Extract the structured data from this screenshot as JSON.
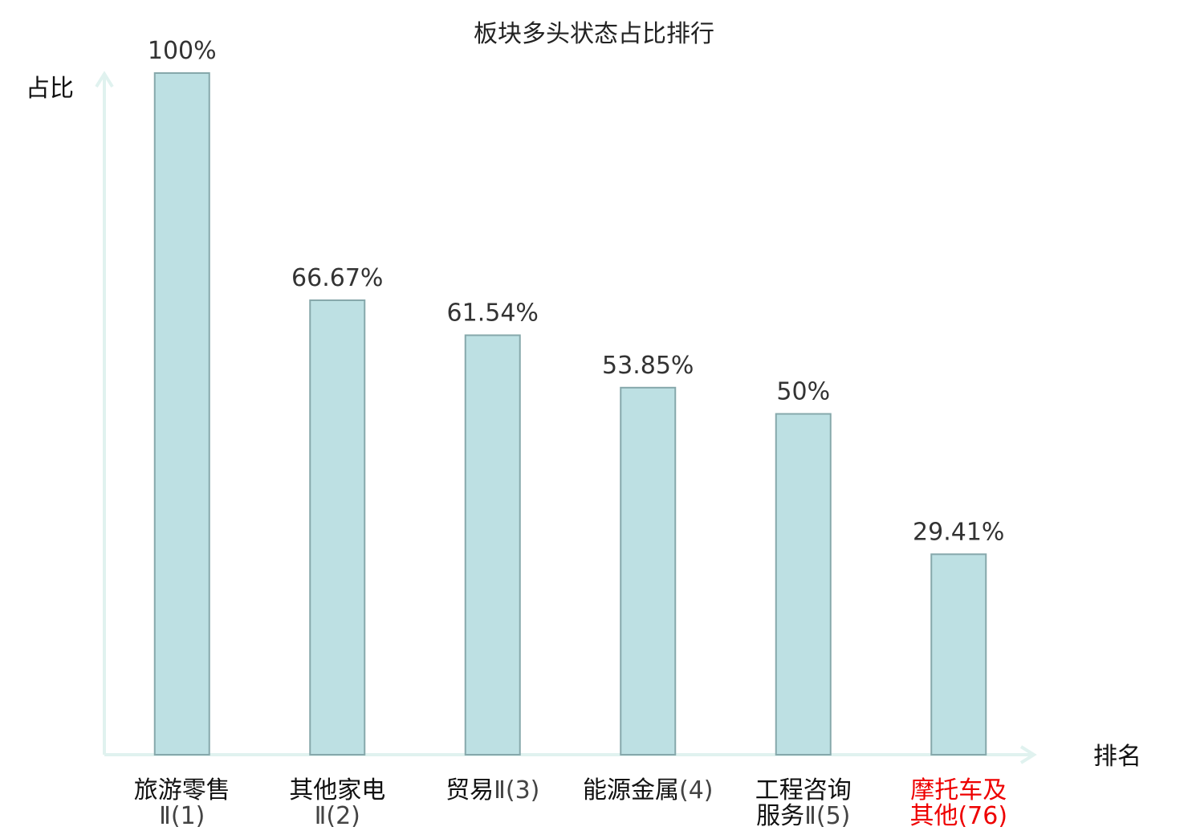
{
  "chart_data": {
    "type": "bar",
    "title": "板块多头状态占比排行",
    "ylabel": "占比",
    "xlabel": "排名",
    "ylim": [
      0,
      100
    ],
    "grid": false,
    "colors": {
      "bar_fill": "#bde0e3",
      "bar_stroke": "#86a8ab",
      "axis": "#e0f2ef",
      "highlight": "#ee0000"
    },
    "categories": [
      {
        "lines": [
          {
            "main": "旅游零售",
            "suffix": ""
          },
          {
            "main": "",
            "suffix": "Ⅱ(1)"
          }
        ],
        "highlight": false
      },
      {
        "lines": [
          {
            "main": "其他家电",
            "suffix": ""
          },
          {
            "main": "",
            "suffix": "Ⅱ(2)"
          }
        ],
        "highlight": false
      },
      {
        "lines": [
          {
            "main": "贸易",
            "suffix": "Ⅱ(3)"
          }
        ],
        "highlight": false
      },
      {
        "lines": [
          {
            "main": "能源金属",
            "suffix": "(4)"
          }
        ],
        "highlight": false
      },
      {
        "lines": [
          {
            "main": "工程咨询",
            "suffix": ""
          },
          {
            "main": "服务",
            "suffix": "Ⅱ(5)"
          }
        ],
        "highlight": false
      },
      {
        "lines": [
          {
            "main": "摩托车及",
            "suffix": ""
          },
          {
            "main": "其他",
            "suffix": "(76)"
          }
        ],
        "highlight": true
      }
    ],
    "values": [
      100,
      66.67,
      61.54,
      53.85,
      50,
      29.41
    ],
    "value_labels": [
      "100%",
      "66.67%",
      "61.54%",
      "53.85%",
      "50%",
      "29.41%"
    ]
  }
}
